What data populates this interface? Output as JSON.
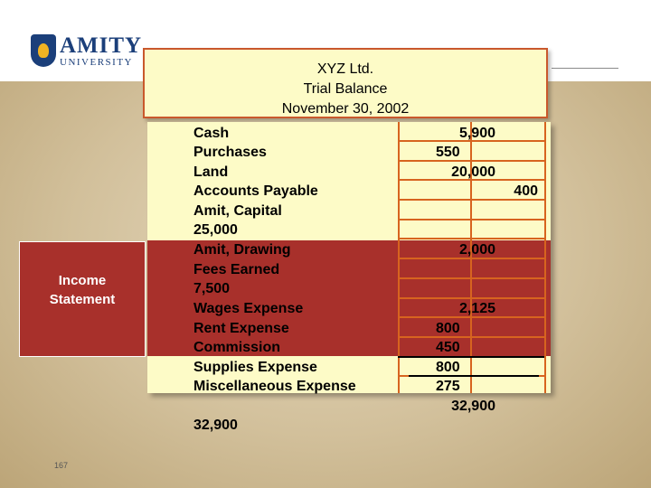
{
  "brand": {
    "name_line1": "AMITY",
    "name_line2": "UNIVERSITY"
  },
  "title": {
    "line1": "XYZ Ltd.",
    "line2": "Trial Balance",
    "line3": "November 30, 2002"
  },
  "side_label": {
    "line1": "Income",
    "line2": "Statement"
  },
  "accounts": [
    "Cash",
    "Purchases",
    "Land",
    "Accounts Payable",
    "Amit, Capital",
    "25,000",
    "Amit, Drawing",
    "Fees Earned",
    "7,500",
    "Wages Expense",
    "Rent Expense",
    "Commission",
    "Supplies Expense",
    "Miscellaneous Expense"
  ],
  "debits": {
    "cash": "5,900",
    "purchases": "550",
    "land": "20,000",
    "drawing": "2,000",
    "wages": "2,125",
    "rent": "800",
    "commission": "450",
    "supplies": "800",
    "misc": "275",
    "total": "32,900"
  },
  "credits": {
    "accounts_payable": "400"
  },
  "credit_total": "32,900",
  "slide_number": "167",
  "colors": {
    "table_fill": "#fdfbc7",
    "band_red": "#a8302b",
    "rule_orange": "#d7641f"
  }
}
